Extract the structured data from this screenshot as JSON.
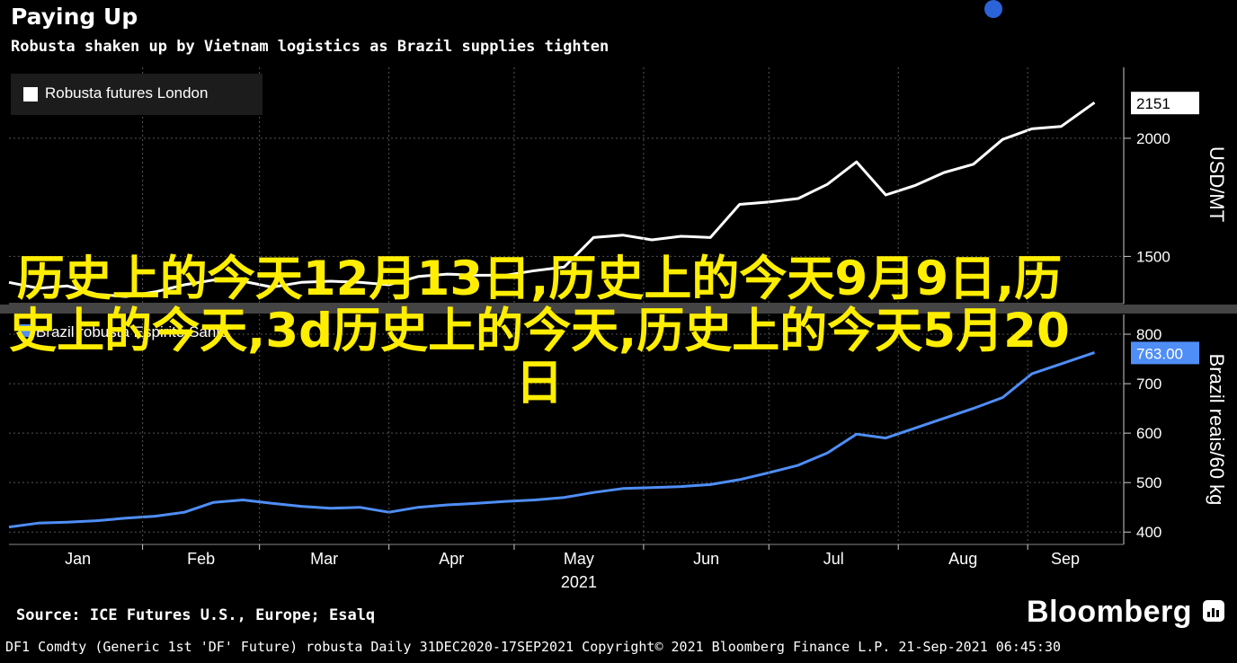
{
  "header": {
    "title": "Paying Up",
    "subtitle": "Robusta shaken up by Vietnam logistics as Brazil supplies tighten"
  },
  "overlay_text": "历史上的今天12月13日,历史上的今天9月9日,历史上的今天,3d历史上的今天,历史上的今天5月20日",
  "colors": {
    "background": "#000000",
    "top_series": "#ffffff",
    "bottom_series": "#4f8ef7",
    "overlay": "#ffee00"
  },
  "chart_data": [
    {
      "type": "line",
      "series": [
        {
          "name": "Robusta futures London",
          "x": [
            "2020-12-31",
            "2021-01-07",
            "2021-01-14",
            "2021-01-21",
            "2021-01-28",
            "2021-02-04",
            "2021-02-11",
            "2021-02-18",
            "2021-02-25",
            "2021-03-04",
            "2021-03-11",
            "2021-03-18",
            "2021-03-25",
            "2021-04-01",
            "2021-04-08",
            "2021-04-15",
            "2021-04-22",
            "2021-04-29",
            "2021-05-06",
            "2021-05-13",
            "2021-05-20",
            "2021-05-27",
            "2021-06-03",
            "2021-06-10",
            "2021-06-17",
            "2021-06-24",
            "2021-07-01",
            "2021-07-08",
            "2021-07-15",
            "2021-07-22",
            "2021-07-29",
            "2021-08-05",
            "2021-08-12",
            "2021-08-19",
            "2021-08-26",
            "2021-09-02",
            "2021-09-09",
            "2021-09-17"
          ],
          "values": [
            1390,
            1365,
            1375,
            1340,
            1330,
            1350,
            1380,
            1400,
            1395,
            1370,
            1390,
            1395,
            1390,
            1380,
            1415,
            1425,
            1420,
            1420,
            1440,
            1455,
            1580,
            1590,
            1570,
            1585,
            1580,
            1720,
            1730,
            1745,
            1805,
            1900,
            1760,
            1800,
            1855,
            1890,
            1995,
            2040,
            2050,
            2151
          ]
        }
      ],
      "ylabel": "USD/MT",
      "ylim": [
        1300,
        2300
      ],
      "yticks": [
        1500,
        2000
      ],
      "last_value_label": "2151",
      "legend": "top-left",
      "grid": true
    },
    {
      "type": "line",
      "series": [
        {
          "name": "Brazil robusta Espirito Santo",
          "x": [
            "2020-12-31",
            "2021-01-07",
            "2021-01-14",
            "2021-01-21",
            "2021-01-28",
            "2021-02-04",
            "2021-02-11",
            "2021-02-18",
            "2021-02-25",
            "2021-03-04",
            "2021-03-11",
            "2021-03-18",
            "2021-03-25",
            "2021-04-01",
            "2021-04-08",
            "2021-04-15",
            "2021-04-22",
            "2021-04-29",
            "2021-05-06",
            "2021-05-13",
            "2021-05-20",
            "2021-05-27",
            "2021-06-03",
            "2021-06-10",
            "2021-06-17",
            "2021-06-24",
            "2021-07-01",
            "2021-07-08",
            "2021-07-15",
            "2021-07-22",
            "2021-07-29",
            "2021-08-05",
            "2021-08-12",
            "2021-08-19",
            "2021-08-26",
            "2021-09-02",
            "2021-09-09",
            "2021-09-17"
          ],
          "values": [
            410,
            418,
            420,
            423,
            428,
            432,
            440,
            460,
            465,
            458,
            452,
            448,
            450,
            440,
            450,
            455,
            458,
            462,
            465,
            470,
            480,
            488,
            490,
            492,
            496,
            506,
            520,
            535,
            560,
            598,
            590,
            610,
            630,
            650,
            672,
            720,
            740,
            763
          ]
        }
      ],
      "ylabel": "Brazil reais/60 kg",
      "ylim": [
        375,
        840
      ],
      "yticks": [
        400,
        500,
        600,
        700,
        800
      ],
      "last_value_label": "763.00",
      "legend": "top-left",
      "grid": true
    }
  ],
  "x_axis": {
    "labels": [
      "Jan",
      "Feb",
      "Mar",
      "Apr",
      "May",
      "Jun",
      "Jul",
      "Aug",
      "Sep"
    ],
    "year_label": "2021"
  },
  "footer": {
    "source": "Source: ICE Futures U.S., Europe; Esalq",
    "brand": "Bloomberg",
    "info": "DF1 Comdty (Generic 1st 'DF' Future) robusta  Daily 31DEC2020-17SEP2021  Copyright© 2021 Bloomberg Finance L.P.  21-Sep-2021 06:45:30"
  }
}
